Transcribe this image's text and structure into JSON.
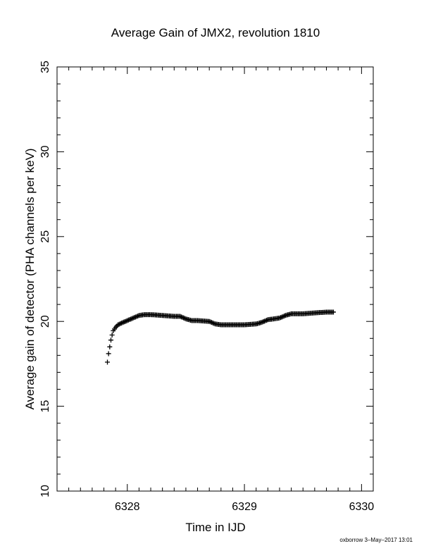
{
  "chart_data": {
    "type": "scatter",
    "title": "Average Gain of JMX2, revolution 1810",
    "xlabel": "Time in IJD",
    "ylabel": "Average gain of detector (PHA channels per keV)",
    "xlim": [
      6327.4,
      6330.1
    ],
    "ylim": [
      10,
      35
    ],
    "xticks": [
      6328,
      6329,
      6330
    ],
    "yticks": [
      10,
      15,
      20,
      25,
      30,
      35
    ],
    "xtick_labels": [
      "6328",
      "6329",
      "6330"
    ],
    "ytick_labels": [
      "10",
      "15",
      "20",
      "25",
      "30",
      "35"
    ],
    "x_minor_step": 0.1,
    "y_minor_step": 1,
    "grid": false,
    "marker": "+",
    "color": "#000000",
    "series": [
      {
        "x": [
          6327.83,
          6327.84,
          6327.85,
          6327.86,
          6327.87,
          6327.88,
          6327.9,
          6327.92,
          6327.95,
          6328.0,
          6328.05,
          6328.1,
          6328.15,
          6328.2,
          6328.3,
          6328.4,
          6328.45,
          6328.5,
          6328.55,
          6328.6,
          6328.7,
          6328.75,
          6328.8,
          6328.9,
          6329.0,
          6329.1,
          6329.15,
          6329.2,
          6329.3,
          6329.35,
          6329.4,
          6329.5,
          6329.6,
          6329.7,
          6329.76
        ],
        "y": [
          17.6,
          18.1,
          18.5,
          18.9,
          19.2,
          19.45,
          19.65,
          19.8,
          19.9,
          20.05,
          20.2,
          20.35,
          20.4,
          20.4,
          20.35,
          20.3,
          20.3,
          20.15,
          20.05,
          20.05,
          20.0,
          19.85,
          19.8,
          19.8,
          19.8,
          19.85,
          19.95,
          20.1,
          20.2,
          20.35,
          20.45,
          20.45,
          20.5,
          20.55,
          20.55
        ]
      }
    ]
  },
  "footer": {
    "text": "oxborrow  3–May–2017 13:01"
  }
}
